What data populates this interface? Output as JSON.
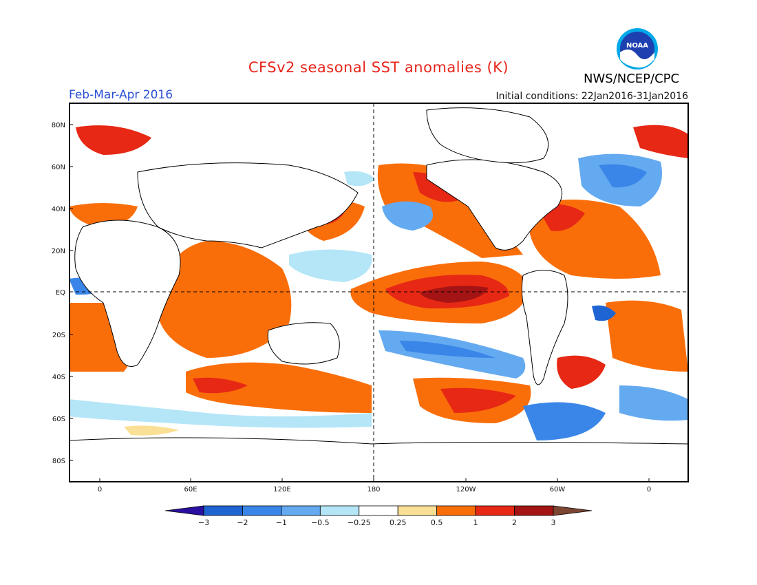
{
  "header": {
    "title": "CFSv2 seasonal SST anomalies (K)",
    "agency": "NWS/NCEP/CPC",
    "logo_text": "NOAA",
    "period": "Feb-Mar-Apr 2016",
    "initial_conditions": "Initial conditions: 22Jan2016-31Jan2016"
  },
  "map": {
    "projection": "equirectangular",
    "lat_ticks": [
      "80N",
      "60N",
      "40N",
      "20N",
      "EQ",
      "20S",
      "40S",
      "60S",
      "80S"
    ],
    "lon_ticks": [
      "0",
      "60E",
      "120E",
      "180",
      "120W",
      "60W",
      "0"
    ],
    "reference_lines": [
      "EQ",
      "180"
    ]
  },
  "colorbar": {
    "labels": [
      "-3",
      "-2",
      "-1",
      "-0.5",
      "-0.25",
      "0.25",
      "0.5",
      "1",
      "2",
      "3"
    ],
    "colors": [
      "#2b0fa0",
      "#1e64d2",
      "#3a86e8",
      "#64aaf0",
      "#b4e6f8",
      "#ffffff",
      "#fae096",
      "#fa6e0a",
      "#e62814",
      "#a51414",
      "#7d4632"
    ]
  },
  "anomaly_colors": {
    "very_warm": "#a51414",
    "warm": "#e62814",
    "moderate": "#fa6e0a",
    "slight": "#fae096",
    "slight_cool": "#b4e6f8",
    "cool": "#64aaf0",
    "cold": "#1e64d2",
    "very_cold": "#2b0fa0"
  }
}
